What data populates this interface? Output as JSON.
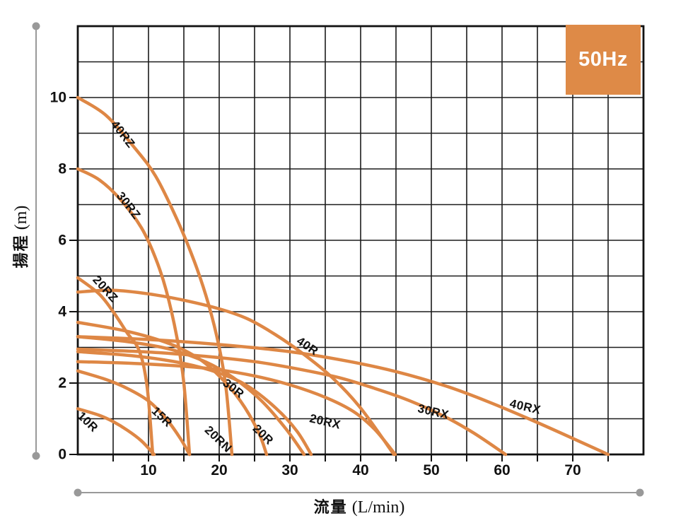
{
  "frequency_badge": {
    "label": "50Hz",
    "bg_color": "#de8a47",
    "text_color": "#ffffff"
  },
  "axes": {
    "x": {
      "title_jp": "流量",
      "title_unit": "(L/min)",
      "min": 0,
      "max": 80,
      "grid_step": 5,
      "tick_labels": [
        "10",
        "20",
        "30",
        "40",
        "50",
        "60",
        "70"
      ],
      "tick_values": [
        10,
        20,
        30,
        40,
        50,
        60,
        70
      ]
    },
    "y": {
      "title_jp": "揚程",
      "title_unit": "(m)",
      "min": 0,
      "max": 12,
      "grid_step": 1,
      "tick_labels": [
        "0",
        "2",
        "4",
        "6",
        "8",
        "10"
      ],
      "tick_values": [
        0,
        2,
        4,
        6,
        8,
        10
      ]
    }
  },
  "chart_data": {
    "type": "line",
    "title": "",
    "xlabel": "流量 (L/min)",
    "ylabel": "揚程 (m)",
    "xlim": [
      0,
      80
    ],
    "ylim": [
      0,
      12
    ],
    "grid": true,
    "legend_position": "inline-labels",
    "curve_color": "#de8745",
    "series": [
      {
        "name": "40RZ",
        "points": [
          [
            0,
            10
          ],
          [
            4,
            9.5
          ],
          [
            8,
            8.6
          ],
          [
            11,
            7.8
          ],
          [
            14,
            6.6
          ],
          [
            16.5,
            5.4
          ],
          [
            18.5,
            4.2
          ],
          [
            20,
            3.0
          ],
          [
            21,
            1.8
          ],
          [
            21.8,
            0
          ]
        ],
        "label": {
          "x": 5.0,
          "y": 9.5,
          "rot": 52
        }
      },
      {
        "name": "30RZ",
        "points": [
          [
            0,
            8
          ],
          [
            3,
            7.7
          ],
          [
            6,
            7.15
          ],
          [
            9,
            6.35
          ],
          [
            11,
            5.5
          ],
          [
            12.5,
            4.6
          ],
          [
            14,
            3.3
          ],
          [
            15,
            2.0
          ],
          [
            15.8,
            0
          ]
        ],
        "label": {
          "x": 5.8,
          "y": 7.5,
          "rot": 52
        }
      },
      {
        "name": "20RZ",
        "points": [
          [
            0,
            4.95
          ],
          [
            3,
            4.5
          ],
          [
            5,
            4.0
          ],
          [
            7,
            3.4
          ],
          [
            8.7,
            2.9
          ],
          [
            9.8,
            1.9
          ],
          [
            10.6,
            0
          ]
        ],
        "label": {
          "x": 2.4,
          "y": 5.15,
          "rot": 48
        }
      },
      {
        "name": "40R",
        "points": [
          [
            0,
            4.55
          ],
          [
            5,
            4.6
          ],
          [
            10,
            4.5
          ],
          [
            15,
            4.32
          ],
          [
            20,
            4.08
          ],
          [
            24,
            3.8
          ],
          [
            28,
            3.35
          ],
          [
            32,
            2.8
          ],
          [
            36,
            2.15
          ],
          [
            40,
            1.3
          ],
          [
            44.7,
            0
          ]
        ],
        "label": {
          "x": 31.1,
          "y": 3.41,
          "rot": 34
        }
      },
      {
        "name": "30R",
        "points": [
          [
            0,
            2.88
          ],
          [
            8,
            2.76
          ],
          [
            15,
            2.55
          ],
          [
            20,
            2.28
          ],
          [
            24,
            1.92
          ],
          [
            28,
            1.3
          ],
          [
            31,
            0.65
          ],
          [
            33,
            0
          ]
        ],
        "label": {
          "x": 20.7,
          "y": 2.24,
          "rot": 38
        }
      },
      {
        "name": "20R",
        "points": [
          [
            0,
            3.3
          ],
          [
            7,
            3.16
          ],
          [
            13,
            2.95
          ],
          [
            18,
            2.6
          ],
          [
            22,
            2.15
          ],
          [
            26,
            1.5
          ],
          [
            29.5,
            0.7
          ],
          [
            32,
            0
          ]
        ],
        "label": {
          "x": 25.0,
          "y": 0.97,
          "rot": 44
        }
      },
      {
        "name": "20RN",
        "points": [
          [
            0,
            3.7
          ],
          [
            7,
            3.45
          ],
          [
            13,
            3.1
          ],
          [
            17,
            2.7
          ],
          [
            20,
            2.2
          ],
          [
            23,
            1.5
          ],
          [
            25.5,
            0.65
          ],
          [
            26.7,
            0
          ]
        ],
        "label": {
          "x": 18.2,
          "y": 0.93,
          "rot": 44
        }
      },
      {
        "name": "15R",
        "points": [
          [
            0,
            2.34
          ],
          [
            4,
            2.1
          ],
          [
            7,
            1.85
          ],
          [
            10,
            1.5
          ],
          [
            12.5,
            1.0
          ],
          [
            14.5,
            0.45
          ],
          [
            15.8,
            0
          ]
        ],
        "label": {
          "x": 10.7,
          "y": 1.47,
          "rot": 44
        }
      },
      {
        "name": "10R",
        "points": [
          [
            0,
            1.28
          ],
          [
            3,
            1.1
          ],
          [
            5,
            0.92
          ],
          [
            7,
            0.68
          ],
          [
            9,
            0.38
          ],
          [
            10.8,
            0
          ]
        ],
        "label": {
          "x": 0.2,
          "y": 1.33,
          "rot": 44
        }
      },
      {
        "name": "20RX",
        "points": [
          [
            0,
            2.6
          ],
          [
            8,
            2.55
          ],
          [
            15,
            2.47
          ],
          [
            20,
            2.37
          ],
          [
            25,
            2.2
          ],
          [
            30,
            1.95
          ],
          [
            35,
            1.6
          ],
          [
            39,
            1.2
          ],
          [
            42,
            0.7
          ],
          [
            44.9,
            0
          ]
        ],
        "label": {
          "x": 32.8,
          "y": 1.21,
          "rot": 13
        }
      },
      {
        "name": "30RX",
        "points": [
          [
            0,
            2.95
          ],
          [
            10,
            2.87
          ],
          [
            18,
            2.75
          ],
          [
            25,
            2.6
          ],
          [
            31,
            2.4
          ],
          [
            37,
            2.15
          ],
          [
            42,
            1.85
          ],
          [
            47,
            1.5
          ],
          [
            52,
            1.05
          ],
          [
            56,
            0.6
          ],
          [
            60.5,
            0
          ]
        ],
        "label": {
          "x": 48.1,
          "y": 1.49,
          "rot": 13
        }
      },
      {
        "name": "40RX",
        "points": [
          [
            0,
            3.3
          ],
          [
            10,
            3.22
          ],
          [
            20,
            3.08
          ],
          [
            30,
            2.88
          ],
          [
            38,
            2.62
          ],
          [
            45,
            2.32
          ],
          [
            52,
            1.92
          ],
          [
            58,
            1.48
          ],
          [
            64,
            0.98
          ],
          [
            70,
            0.45
          ],
          [
            75,
            0
          ]
        ],
        "label": {
          "x": 61.1,
          "y": 1.62,
          "rot": 13
        }
      }
    ]
  },
  "style": {
    "grid_color": "#1b1b1b",
    "border_color": "#111111",
    "dim_line_color": "#999999",
    "label_color": "#111111"
  }
}
